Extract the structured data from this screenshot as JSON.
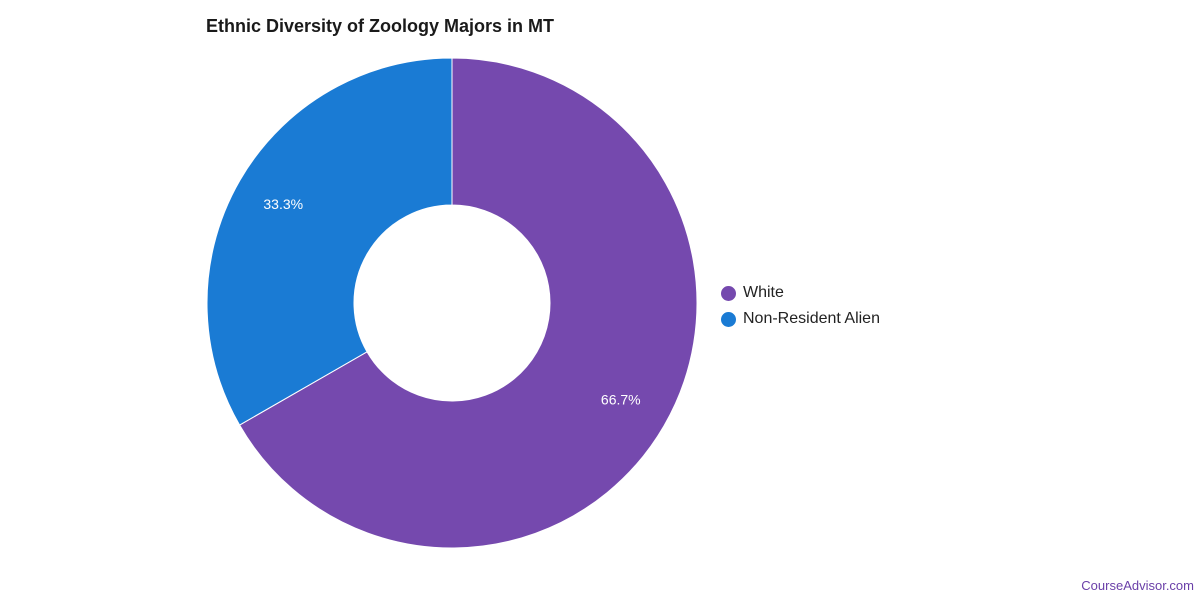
{
  "chart_data": {
    "type": "pie",
    "donut": true,
    "title": "Ethnic Diversity of Zoology Majors in MT",
    "slices": [
      {
        "name": "White",
        "value": 66.7,
        "label": "66.7%",
        "color": "#7549ae"
      },
      {
        "name": "Non-Resident Alien",
        "value": 33.3,
        "label": "33.3%",
        "color": "#1a7bd4"
      }
    ],
    "legend_position": "right"
  },
  "footer": {
    "source": "CourseAdvisor.com"
  }
}
